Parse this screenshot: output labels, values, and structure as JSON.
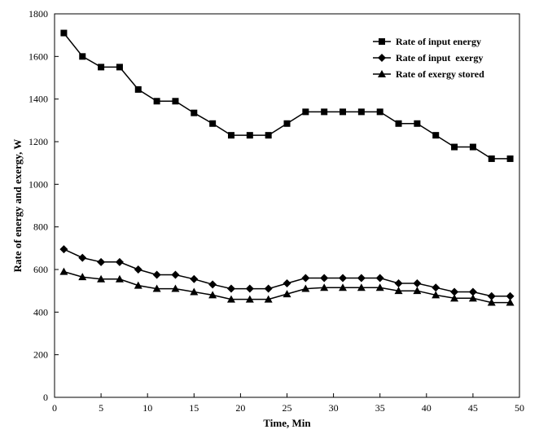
{
  "chart_data": {
    "type": "line",
    "title": "",
    "xlabel": "Time, Min",
    "ylabel": "Rate of energy and exergy, W",
    "xlim": [
      0,
      50
    ],
    "ylim": [
      0,
      1800
    ],
    "xticks": [
      0,
      5,
      10,
      15,
      20,
      25,
      30,
      35,
      40,
      45,
      50
    ],
    "yticks": [
      0,
      200,
      400,
      600,
      800,
      1000,
      1200,
      1400,
      1600,
      1800
    ],
    "grid": false,
    "legend_position": "top-right",
    "x": [
      1,
      3,
      5,
      7,
      9,
      11,
      13,
      15,
      17,
      19,
      21,
      23,
      25,
      27,
      29,
      31,
      33,
      35,
      37,
      39,
      41,
      43,
      45,
      47,
      49
    ],
    "series": [
      {
        "name": "Rate of input energy",
        "marker": "square",
        "values": [
          1710,
          1600,
          1550,
          1550,
          1445,
          1390,
          1390,
          1335,
          1285,
          1230,
          1230,
          1230,
          1285,
          1340,
          1340,
          1340,
          1340,
          1340,
          1285,
          1285,
          1230,
          1175,
          1175,
          1120,
          1120
        ]
      },
      {
        "name": "Rate of input  exergy",
        "marker": "diamond",
        "values": [
          695,
          655,
          635,
          635,
          600,
          575,
          575,
          555,
          530,
          510,
          510,
          510,
          535,
          560,
          560,
          560,
          560,
          560,
          535,
          535,
          515,
          495,
          495,
          475,
          475
        ]
      },
      {
        "name": "Rate of exergy stored",
        "marker": "triangle",
        "values": [
          590,
          565,
          555,
          555,
          525,
          510,
          510,
          495,
          480,
          460,
          460,
          460,
          485,
          510,
          515,
          515,
          515,
          515,
          500,
          500,
          480,
          465,
          465,
          445,
          445
        ]
      }
    ]
  }
}
